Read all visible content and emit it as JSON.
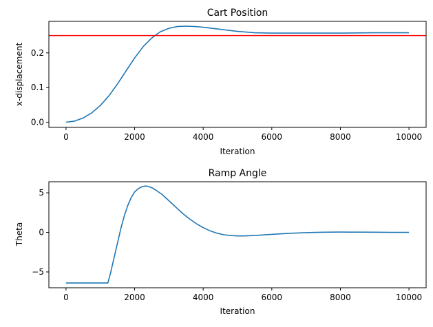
{
  "chart_data": [
    {
      "type": "line",
      "title": "Cart Position",
      "xlabel": "Iteration",
      "ylabel": "x-displacement",
      "xlim": [
        -500,
        10500
      ],
      "ylim": [
        -0.015,
        0.291
      ],
      "x_ticks": [
        0,
        2000,
        4000,
        6000,
        8000,
        10000
      ],
      "x_tick_labels": [
        "0",
        "2000",
        "4000",
        "6000",
        "8000",
        "10000"
      ],
      "y_ticks": [
        0.0,
        0.1,
        0.2
      ],
      "y_tick_labels": [
        "0.0",
        "0.1",
        "0.2"
      ],
      "grid": false,
      "hlines": [
        {
          "y": 0.25,
          "color": "#ff0000"
        }
      ],
      "series": [
        {
          "color": "#1f77b4",
          "x": [
            0,
            250,
            500,
            750,
            1000,
            1250,
            1500,
            1750,
            2000,
            2250,
            2500,
            2750,
            3000,
            3250,
            3500,
            3750,
            4000,
            4500,
            5000,
            5500,
            6000,
            6500,
            7000,
            8000,
            9000,
            10000
          ],
          "y": [
            0.0,
            0.003,
            0.012,
            0.027,
            0.048,
            0.076,
            0.11,
            0.148,
            0.185,
            0.218,
            0.243,
            0.261,
            0.271,
            0.276,
            0.277,
            0.276,
            0.274,
            0.268,
            0.262,
            0.258,
            0.257,
            0.257,
            0.257,
            0.257,
            0.258,
            0.258
          ]
        }
      ]
    },
    {
      "type": "line",
      "title": "Ramp Angle",
      "xlabel": "Iteration",
      "ylabel": "Theta",
      "xlim": [
        -500,
        10500
      ],
      "ylim": [
        -7.0,
        6.4
      ],
      "x_ticks": [
        0,
        2000,
        4000,
        6000,
        8000,
        10000
      ],
      "x_tick_labels": [
        "0",
        "2000",
        "4000",
        "6000",
        "8000",
        "10000"
      ],
      "y_ticks": [
        -5,
        0,
        5
      ],
      "y_tick_labels": [
        "−5",
        "0",
        "5"
      ],
      "grid": false,
      "series": [
        {
          "color": "#1f77b4",
          "x": [
            0,
            1220,
            1300,
            1400,
            1500,
            1600,
            1700,
            1800,
            1900,
            2000,
            2100,
            2200,
            2300,
            2350,
            2400,
            2500,
            2600,
            2800,
            3000,
            3200,
            3400,
            3600,
            3800,
            4000,
            4200,
            4400,
            4600,
            4800,
            5000,
            5200,
            5500,
            6000,
            6500,
            7000,
            7500,
            8000,
            8500,
            9000,
            9500,
            10000
          ],
          "y": [
            -6.4,
            -6.4,
            -5.1,
            -3.2,
            -1.4,
            0.5,
            2.1,
            3.4,
            4.4,
            5.1,
            5.5,
            5.75,
            5.85,
            5.85,
            5.8,
            5.65,
            5.4,
            4.8,
            4.0,
            3.2,
            2.4,
            1.7,
            1.1,
            0.6,
            0.2,
            -0.1,
            -0.3,
            -0.4,
            -0.45,
            -0.45,
            -0.4,
            -0.25,
            -0.12,
            -0.03,
            0.02,
            0.04,
            0.03,
            0.02,
            0.0,
            0.0
          ]
        }
      ]
    }
  ]
}
